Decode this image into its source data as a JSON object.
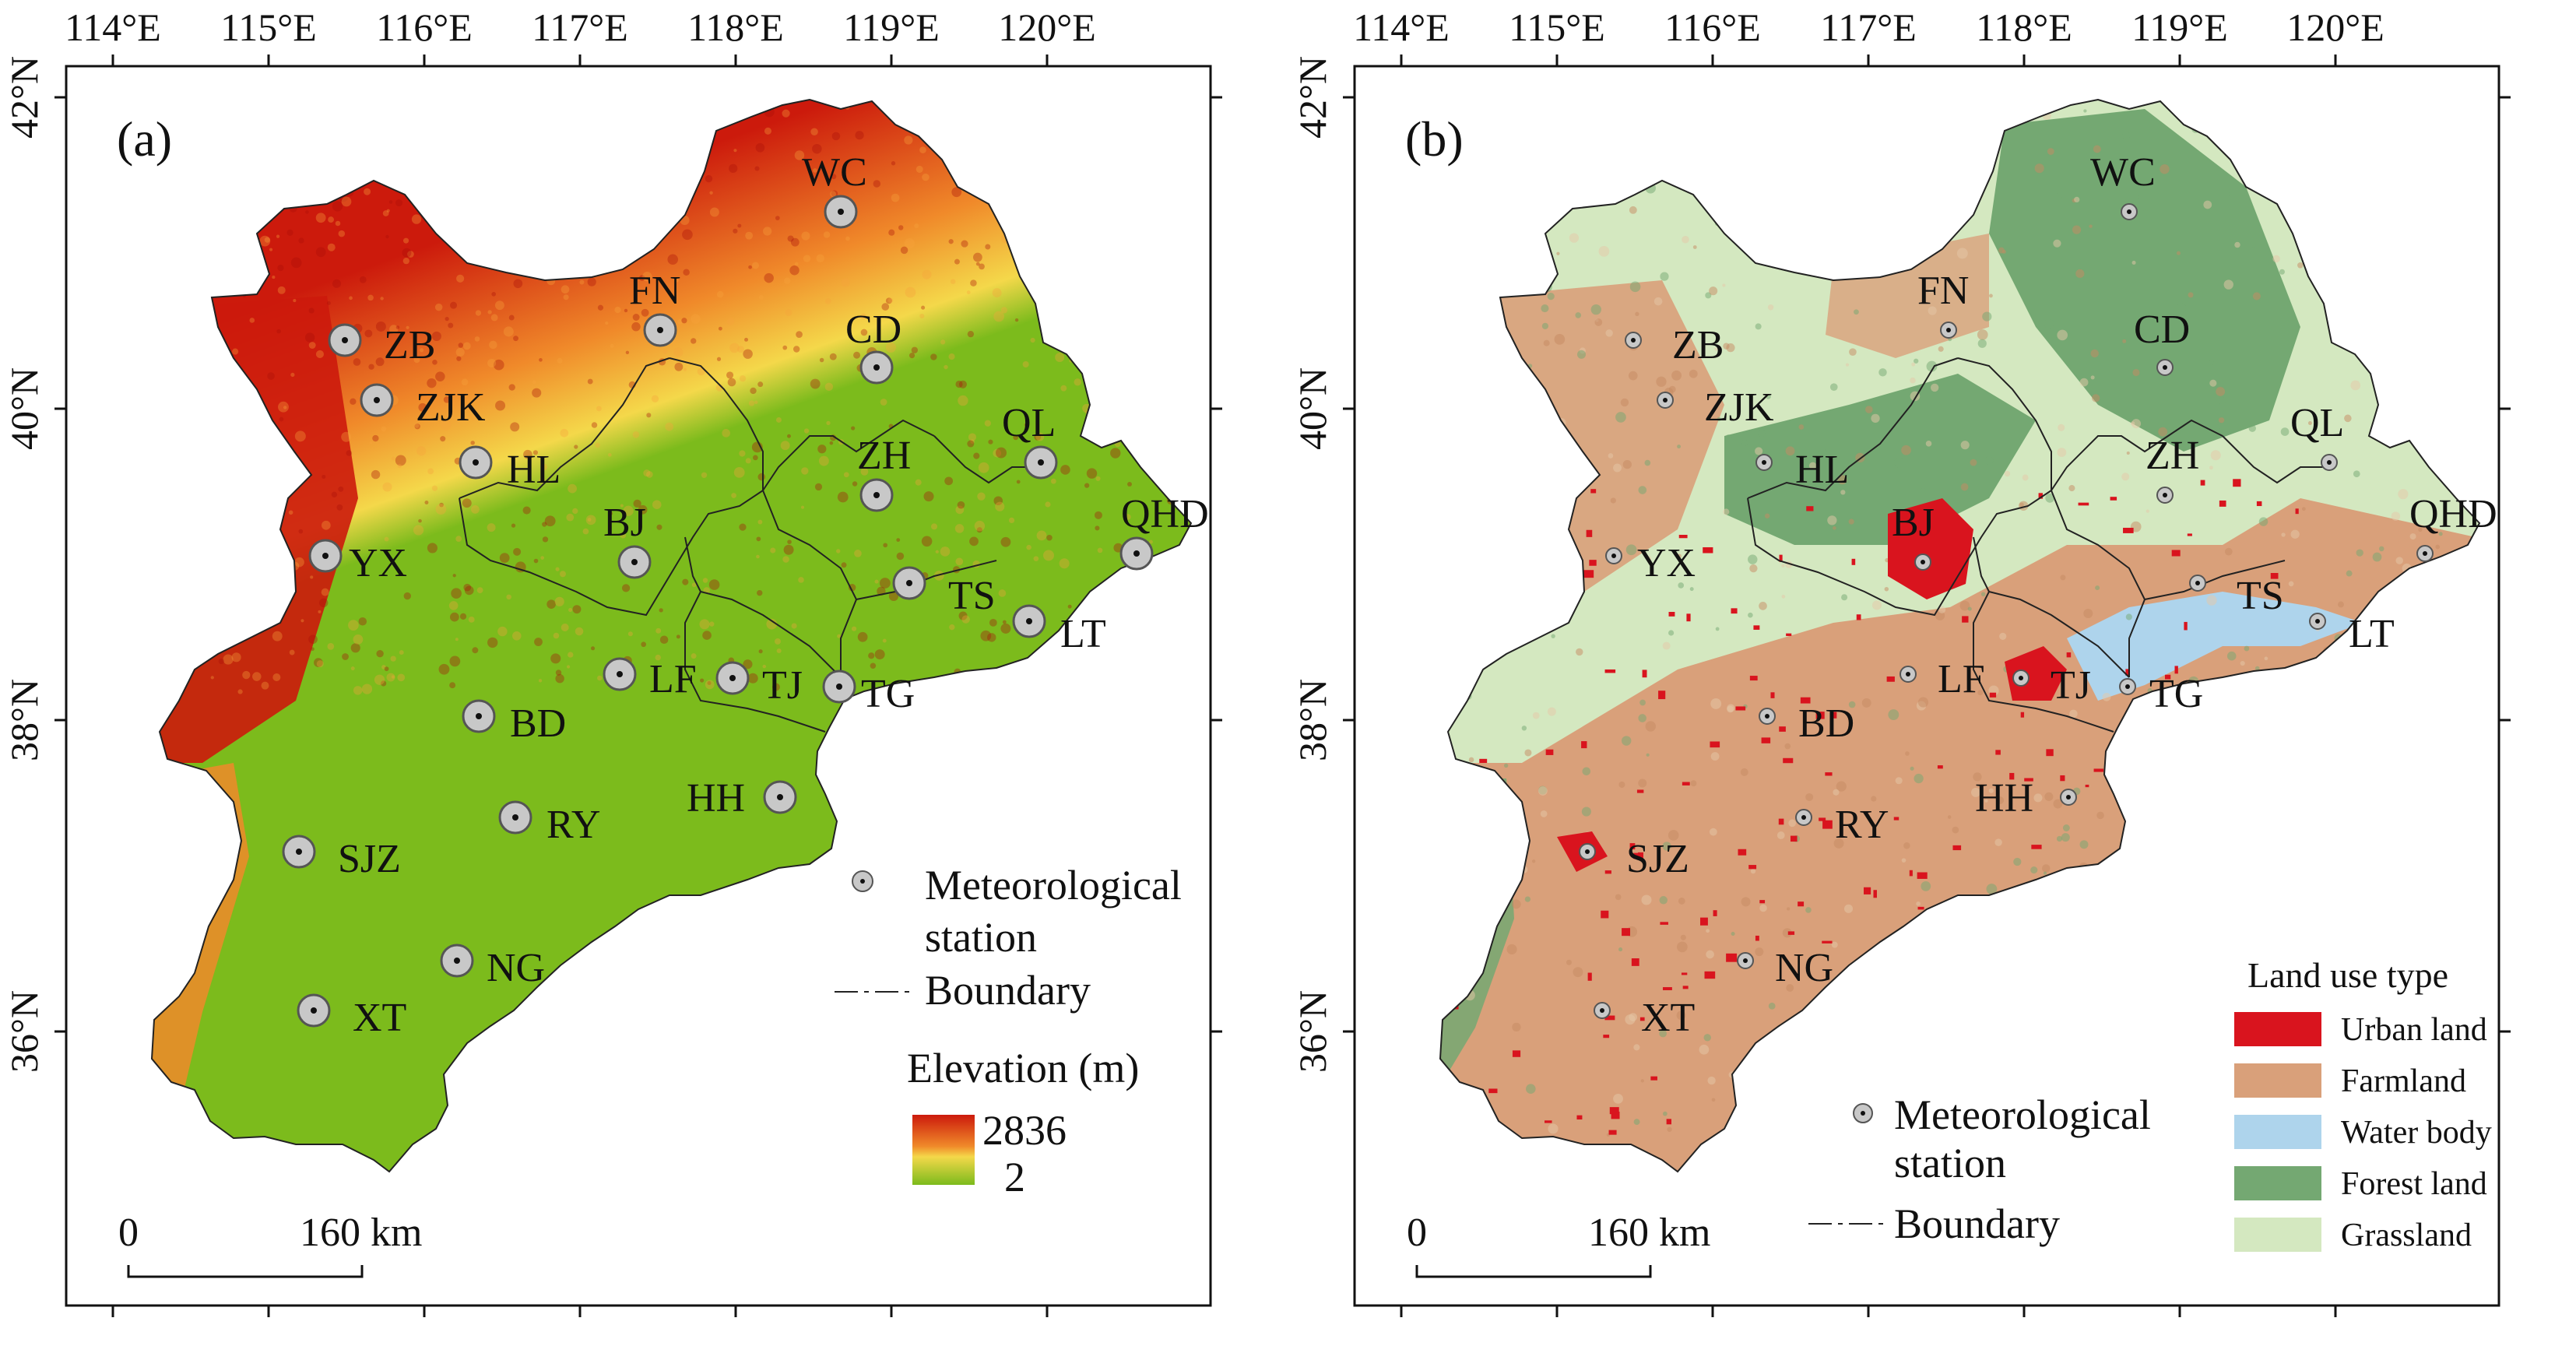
{
  "panels": [
    {
      "id": "a",
      "label": "(a)",
      "kind": "elevation",
      "lon_ticks": [
        "114°E",
        "115°E",
        "116°E",
        "117°E",
        "118°E",
        "119°E",
        "120°E"
      ],
      "lat_ticks": [
        "42°N",
        "40°N",
        "38°N",
        "36°N"
      ],
      "legend": {
        "station_label_1": "Meteorological",
        "station_label_2": "station",
        "boundary_label": "Boundary",
        "elevation_title": "Elevation (m)",
        "elevation_max": "2836",
        "elevation_min": "2"
      },
      "scalebar": {
        "zero": "0",
        "distance": "160 km"
      }
    },
    {
      "id": "b",
      "label": "(b)",
      "kind": "landuse",
      "lon_ticks": [
        "114°E",
        "115°E",
        "116°E",
        "117°E",
        "118°E",
        "119°E",
        "120°E"
      ],
      "lat_ticks": [
        "42°N",
        "40°N",
        "38°N",
        "36°N"
      ],
      "legend": {
        "station_label_1": "Meteorological",
        "station_label_2": "station",
        "boundary_label": "Boundary",
        "landuse_title": "Land use type",
        "classes": [
          {
            "name": "Urban land",
            "color": "#d9141e"
          },
          {
            "name": "Farmland",
            "color": "#d9a07a"
          },
          {
            "name": "Water body",
            "color": "#aed4ec"
          },
          {
            "name": "Forest land",
            "color": "#74a872"
          },
          {
            "name": "Grassland",
            "color": "#d4e8c0"
          }
        ]
      },
      "scalebar": {
        "zero": "0",
        "distance": "160 km"
      }
    }
  ],
  "stations": [
    "WC",
    "FN",
    "CD",
    "ZB",
    "ZJK",
    "QL",
    "ZH",
    "HL",
    "QHD",
    "BJ",
    "YX",
    "TS",
    "LT",
    "LF",
    "TJ",
    "TG",
    "BD",
    "HH",
    "RY",
    "SJZ",
    "NG",
    "XT"
  ],
  "colors": {
    "elev_high": "#cc1a0c",
    "elev_mid": "#f08a2a",
    "elev_yellow": "#f4d84a",
    "elev_low": "#7cbb1c"
  }
}
